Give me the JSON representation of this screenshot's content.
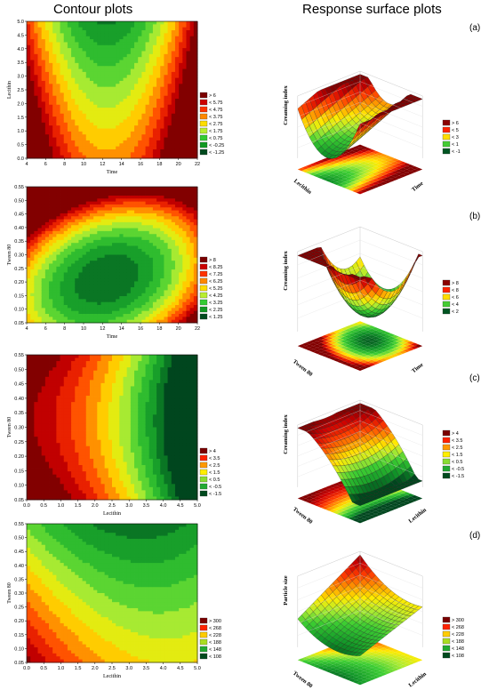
{
  "headers": {
    "contour": "Contour plots",
    "surface": "Response surface plots"
  },
  "panel_labels": [
    "(a)",
    "(b)",
    "(c)",
    "(d)"
  ],
  "chart_data": [
    {
      "type": "heatmap",
      "xlabel": "Time",
      "ylabel": "Lecithin",
      "xticks": [
        "4",
        "6",
        "8",
        "10",
        "12",
        "14",
        "16",
        "18",
        "20",
        "22"
      ],
      "xlim": [
        4,
        22
      ],
      "yticks": [
        "0.0",
        "0.5",
        "1.0",
        "1.5",
        "2.0",
        "2.5",
        "3.0",
        "3.5",
        "4.0",
        "4.5",
        "5.0"
      ],
      "ylim": [
        0,
        5
      ],
      "legend": [
        "> 6",
        "< 5.75",
        "< 4.75",
        "< 3.75",
        "< 2.75",
        "< 1.75",
        "< 0.75",
        "< -0.25",
        "< -1.25"
      ],
      "legend_colors": [
        "#7a0000",
        "#cc0000",
        "#ff3300",
        "#ff8800",
        "#ffdd00",
        "#b8ee30",
        "#33cc33",
        "#119922",
        "#004a1e"
      ],
      "surface": {
        "zlabel": "Creaming index",
        "xlabel": "Lecithin",
        "ylabel": "Time",
        "legend": [
          "> 6",
          "< 5",
          "< 3",
          "< 1",
          "< -1"
        ],
        "legend_colors": [
          "#8b0000",
          "#ff2200",
          "#ffdd00",
          "#44cc33",
          "#005522"
        ]
      }
    },
    {
      "type": "heatmap",
      "xlabel": "Time",
      "ylabel": "Tween 80",
      "xticks": [
        "4",
        "6",
        "8",
        "10",
        "12",
        "14",
        "16",
        "18",
        "20",
        "22"
      ],
      "xlim": [
        4,
        22
      ],
      "yticks": [
        "0.05",
        "0.10",
        "0.15",
        "0.20",
        "0.25",
        "0.30",
        "0.35",
        "0.40",
        "0.45",
        "0.50",
        "0.55"
      ],
      "ylim": [
        0.05,
        0.55
      ],
      "legend": [
        "> 8",
        "< 8.25",
        "< 7.25",
        "< 6.25",
        "< 5.25",
        "< 4.25",
        "< 3.25",
        "< 2.25",
        "< 1.25"
      ],
      "legend_colors": [
        "#7a0000",
        "#cc0000",
        "#ff3300",
        "#ff8800",
        "#ffdd00",
        "#b8ee30",
        "#33cc33",
        "#119922",
        "#004a1e"
      ],
      "surface": {
        "zlabel": "Creaming index",
        "xlabel": "Tween 80",
        "ylabel": "Time",
        "legend": [
          "> 8",
          "< 8",
          "< 6",
          "< 4",
          "< 2"
        ],
        "legend_colors": [
          "#8b0000",
          "#ff2200",
          "#ffdd00",
          "#44cc33",
          "#005522"
        ]
      }
    },
    {
      "type": "heatmap",
      "xlabel": "Lecithin",
      "ylabel": "Tween 80",
      "xticks": [
        "0.0",
        "0.5",
        "1.0",
        "1.5",
        "2.0",
        "2.5",
        "3.0",
        "3.5",
        "4.0",
        "4.5",
        "5.0"
      ],
      "xlim": [
        0,
        5
      ],
      "yticks": [
        "0.05",
        "0.10",
        "0.15",
        "0.20",
        "0.25",
        "0.30",
        "0.35",
        "0.40",
        "0.45",
        "0.50",
        "0.55"
      ],
      "ylim": [
        0.05,
        0.55
      ],
      "legend": [
        "> 4",
        "< 3.5",
        "< 2.5",
        "< 1.5",
        "< 0.5",
        "< -0.5",
        "< -1.5"
      ],
      "legend_colors": [
        "#7a0000",
        "#ff2200",
        "#ff9900",
        "#ffee00",
        "#88dd33",
        "#22aa33",
        "#004a1e"
      ],
      "surface": {
        "zlabel": "Creaming index",
        "xlabel": "Tween 80",
        "ylabel": "Lecithin",
        "legend": [
          "> 4",
          "< 3.5",
          "< 2.5",
          "< 1.5",
          "< 0.5",
          "< -0.5",
          "< -1.5"
        ],
        "legend_colors": [
          "#7a0000",
          "#ff2200",
          "#ff9900",
          "#ffee00",
          "#88dd33",
          "#22aa33",
          "#004a1e"
        ]
      }
    },
    {
      "type": "heatmap",
      "xlabel": "Lecithin",
      "ylabel": "Tween 80",
      "xticks": [
        "0.0",
        "0.5",
        "1.0",
        "1.5",
        "2.0",
        "2.5",
        "3.0",
        "3.5",
        "4.0",
        "4.5",
        "5.0"
      ],
      "xlim": [
        0,
        5
      ],
      "yticks": [
        "0.05",
        "0.10",
        "0.15",
        "0.20",
        "0.25",
        "0.30",
        "0.35",
        "0.40",
        "0.45",
        "0.50",
        "0.55"
      ],
      "ylim": [
        0.05,
        0.55
      ],
      "legend": [
        "> 300",
        "< 268",
        "< 228",
        "< 188",
        "< 148",
        "< 108"
      ],
      "legend_colors": [
        "#7a0000",
        "#ff2200",
        "#ffcc00",
        "#aadd22",
        "#22aa33",
        "#004a1e"
      ],
      "surface": {
        "zlabel": "Particle size",
        "xlabel": "Tween 80",
        "ylabel": "Lecithin",
        "legend": [
          "> 300",
          "< 268",
          "< 228",
          "< 188",
          "< 148",
          "< 108"
        ],
        "legend_colors": [
          "#7a0000",
          "#ff2200",
          "#ffcc00",
          "#aadd22",
          "#22aa33",
          "#004a1e"
        ]
      }
    }
  ]
}
